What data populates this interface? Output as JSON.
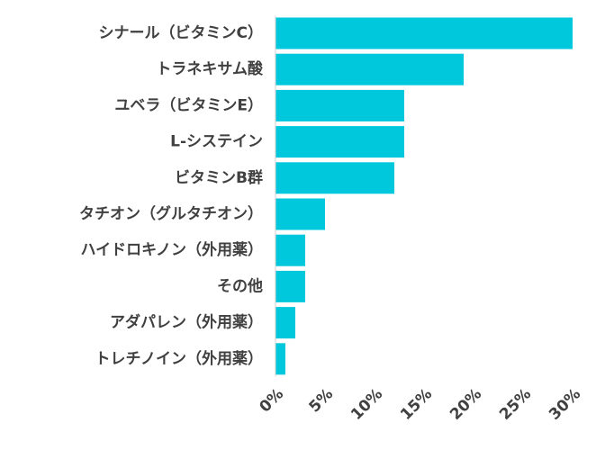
{
  "chart_data": {
    "type": "bar",
    "orientation": "horizontal",
    "categories": [
      "シナール（ビタミンC）",
      "トラネキサム酸",
      "ユベラ（ビタミンE）",
      "L-システイン",
      "ビタミンB群",
      "タチオン（グルタチオン）",
      "ハイドロキノン（外用薬）",
      "その他",
      "アダパレン（外用薬）",
      "トレチノイン（外用薬）"
    ],
    "values": [
      30,
      19,
      13,
      13,
      12,
      5,
      3,
      3,
      2,
      1
    ],
    "xlim": [
      0,
      30
    ],
    "ticks": [
      0,
      5,
      10,
      15,
      20,
      25,
      30
    ],
    "tick_labels": [
      "0%",
      "5%",
      "10%",
      "15%",
      "20%",
      "25%",
      "30%"
    ],
    "bar_color": "#00C8DC",
    "grid": false,
    "title": "",
    "xlabel": "",
    "ylabel": ""
  }
}
